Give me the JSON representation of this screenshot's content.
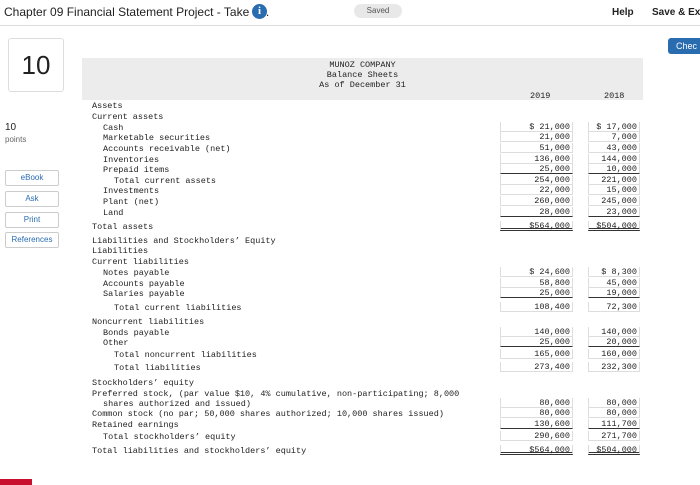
{
  "header": {
    "title": "Chapter 09 Financial Statement Project - Take h...",
    "status": "Saved",
    "help": "Help",
    "save_exit": "Save & Exi",
    "check": "Chec"
  },
  "sidebar": {
    "question_number": "10",
    "points_value": "10",
    "points_label": "points",
    "buttons": [
      "eBook",
      "Ask",
      "Print",
      "References"
    ]
  },
  "statement": {
    "company": "MUNOZ COMPANY",
    "title": "Balance Sheets",
    "date": "As of December 31",
    "columns": [
      "2019",
      "2018"
    ],
    "rows": [
      {
        "label": "Assets"
      },
      {
        "label": "Current assets"
      },
      {
        "label": "Cash",
        "values": [
          "$ 21,000",
          "$ 17,000"
        ]
      },
      {
        "label": "Marketable securities",
        "values": [
          "21,000",
          "7,000"
        ]
      },
      {
        "label": "Accounts receivable (net)",
        "values": [
          "51,000",
          "43,000"
        ]
      },
      {
        "label": "Inventories",
        "values": [
          "136,000",
          "144,000"
        ]
      },
      {
        "label": "Prepaid items",
        "values": [
          "25,000",
          "10,000"
        ]
      },
      {
        "label": "Total current assets",
        "values": [
          "254,000",
          "221,000"
        ]
      },
      {
        "label": "Investments",
        "values": [
          "22,000",
          "15,000"
        ]
      },
      {
        "label": "Plant (net)",
        "values": [
          "260,000",
          "245,000"
        ]
      },
      {
        "label": "Land",
        "values": [
          "28,000",
          "23,000"
        ]
      },
      {
        "label": "Total assets",
        "values": [
          "$564,000",
          "$504,000"
        ]
      },
      {
        "label": "Liabilities and Stockholders’ Equity"
      },
      {
        "label": "Liabilities"
      },
      {
        "label": "Current liabilities"
      },
      {
        "label": "Notes payable",
        "values": [
          "$ 24,600",
          "$ 8,300"
        ]
      },
      {
        "label": "Accounts payable",
        "values": [
          "58,800",
          "45,000"
        ]
      },
      {
        "label": "Salaries payable",
        "values": [
          "25,000",
          "19,000"
        ]
      },
      {
        "label": "Total current liabilities",
        "values": [
          "108,400",
          "72,300"
        ]
      },
      {
        "label": "Noncurrent liabilities"
      },
      {
        "label": "Bonds payable",
        "values": [
          "140,000",
          "140,000"
        ]
      },
      {
        "label": "Other",
        "values": [
          "25,000",
          "20,000"
        ]
      },
      {
        "label": "Total noncurrent liabilities",
        "values": [
          "165,000",
          "160,000"
        ]
      },
      {
        "label": "Total liabilities",
        "values": [
          "273,400",
          "232,300"
        ]
      },
      {
        "label": "Stockholders’ equity"
      },
      {
        "label": "Preferred stock, (par value $10, 4% cumulative, non-participating; 8,000"
      },
      {
        "label": "shares authorized and issued)",
        "values": [
          "80,000",
          "80,000"
        ]
      },
      {
        "label": "Common stock (no par; 50,000 shares authorized; 10,000 shares issued)",
        "values": [
          "80,000",
          "80,000"
        ]
      },
      {
        "label": "Retained earnings",
        "values": [
          "130,600",
          "111,700"
        ]
      },
      {
        "label": "Total stockholders’ equity",
        "values": [
          "290,600",
          "271,700"
        ]
      },
      {
        "label": "Total liabilities and stockholders’ equity",
        "values": [
          "$564,000",
          "$504,000"
        ]
      }
    ]
  }
}
